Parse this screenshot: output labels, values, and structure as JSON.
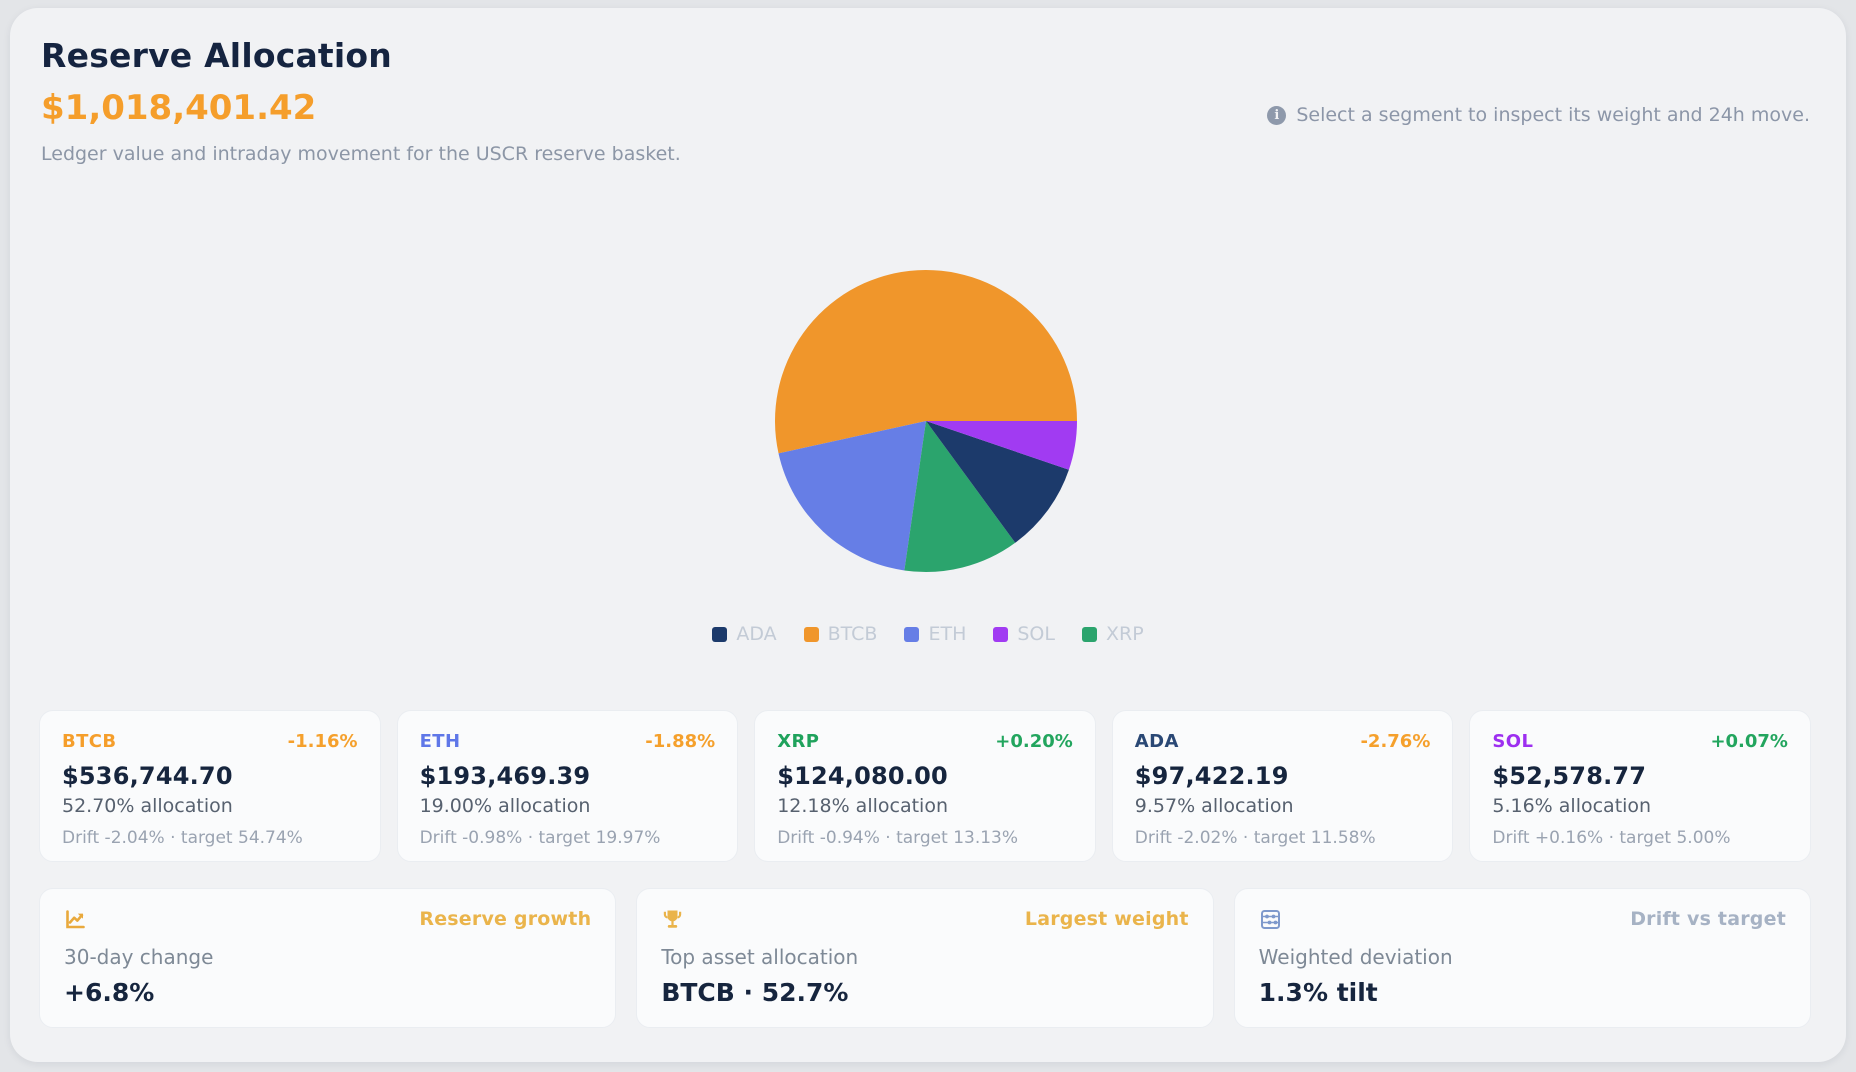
{
  "header": {
    "title": "Reserve Allocation",
    "total_value": "$1,018,401.42",
    "subtitle": "Ledger value and intraday movement for the USCR reserve basket.",
    "hint": "Select a segment to inspect its weight and 24h move."
  },
  "chart_data": {
    "type": "pie",
    "title": "Reserve Allocation",
    "unit": "% allocation",
    "start_angle_deg": 0,
    "direction": "counterclockwise",
    "slices": [
      {
        "label": "BTCB",
        "value": 52.7,
        "color": "#F0962B"
      },
      {
        "label": "ETH",
        "value": 19.0,
        "color": "#667EE6"
      },
      {
        "label": "XRP",
        "value": 12.18,
        "color": "#2BA46D"
      },
      {
        "label": "ADA",
        "value": 9.57,
        "color": "#1C3A6B"
      },
      {
        "label": "SOL",
        "value": 5.16,
        "color": "#A13BF2"
      }
    ],
    "legend": [
      "ADA",
      "BTCB",
      "ETH",
      "SOL",
      "XRP"
    ],
    "legend_position": "bottom"
  },
  "assets": [
    {
      "ticker": "BTCB",
      "ticker_color": "#F59E2B",
      "change": "-1.16%",
      "change_color": "#F5A02C",
      "value": "$536,744.70",
      "allocation": "52.70% allocation",
      "drift": "Drift -2.04% · target 54.74%"
    },
    {
      "ticker": "ETH",
      "ticker_color": "#5F77E8",
      "change": "-1.88%",
      "change_color": "#F5A02C",
      "value": "$193,469.39",
      "allocation": "19.00% allocation",
      "drift": "Drift -0.98% · target 19.97%"
    },
    {
      "ticker": "XRP",
      "ticker_color": "#1FA25C",
      "change": "+0.20%",
      "change_color": "#22A55E",
      "value": "$124,080.00",
      "allocation": "12.18% allocation",
      "drift": "Drift -0.94% · target 13.13%"
    },
    {
      "ticker": "ADA",
      "ticker_color": "#2A4875",
      "change": "-2.76%",
      "change_color": "#F5A02C",
      "value": "$97,422.19",
      "allocation": "9.57% allocation",
      "drift": "Drift -2.02% · target 11.58%"
    },
    {
      "ticker": "SOL",
      "ticker_color": "#9D2FF0",
      "change": "+0.07%",
      "change_color": "#22A55E",
      "value": "$52,578.77",
      "allocation": "5.16% allocation",
      "drift": "Drift +0.16% · target 5.00%"
    }
  ],
  "summary": [
    {
      "icon": "trend-up-icon",
      "badge": "Reserve growth",
      "badge_style": "amber",
      "label": "30-day change",
      "value": "+6.8%"
    },
    {
      "icon": "trophy-icon",
      "badge": "Largest weight",
      "badge_style": "amber",
      "label": "Top asset allocation",
      "value": "BTCB · 52.7%"
    },
    {
      "icon": "abacus-icon",
      "badge": "Drift vs target",
      "badge_style": "muted",
      "label": "Weighted deviation",
      "value": "1.3% tilt"
    }
  ],
  "colors": {
    "panel_bg": "#F1F2F4",
    "page_bg": "#E3E5E8",
    "card_bg": "#FAFBFC",
    "heading": "#152440",
    "accent_amber": "#F59E2B",
    "positive_green": "#22A55E",
    "muted_text": "#8C96A6",
    "legend_text": "#C3CBD6"
  }
}
